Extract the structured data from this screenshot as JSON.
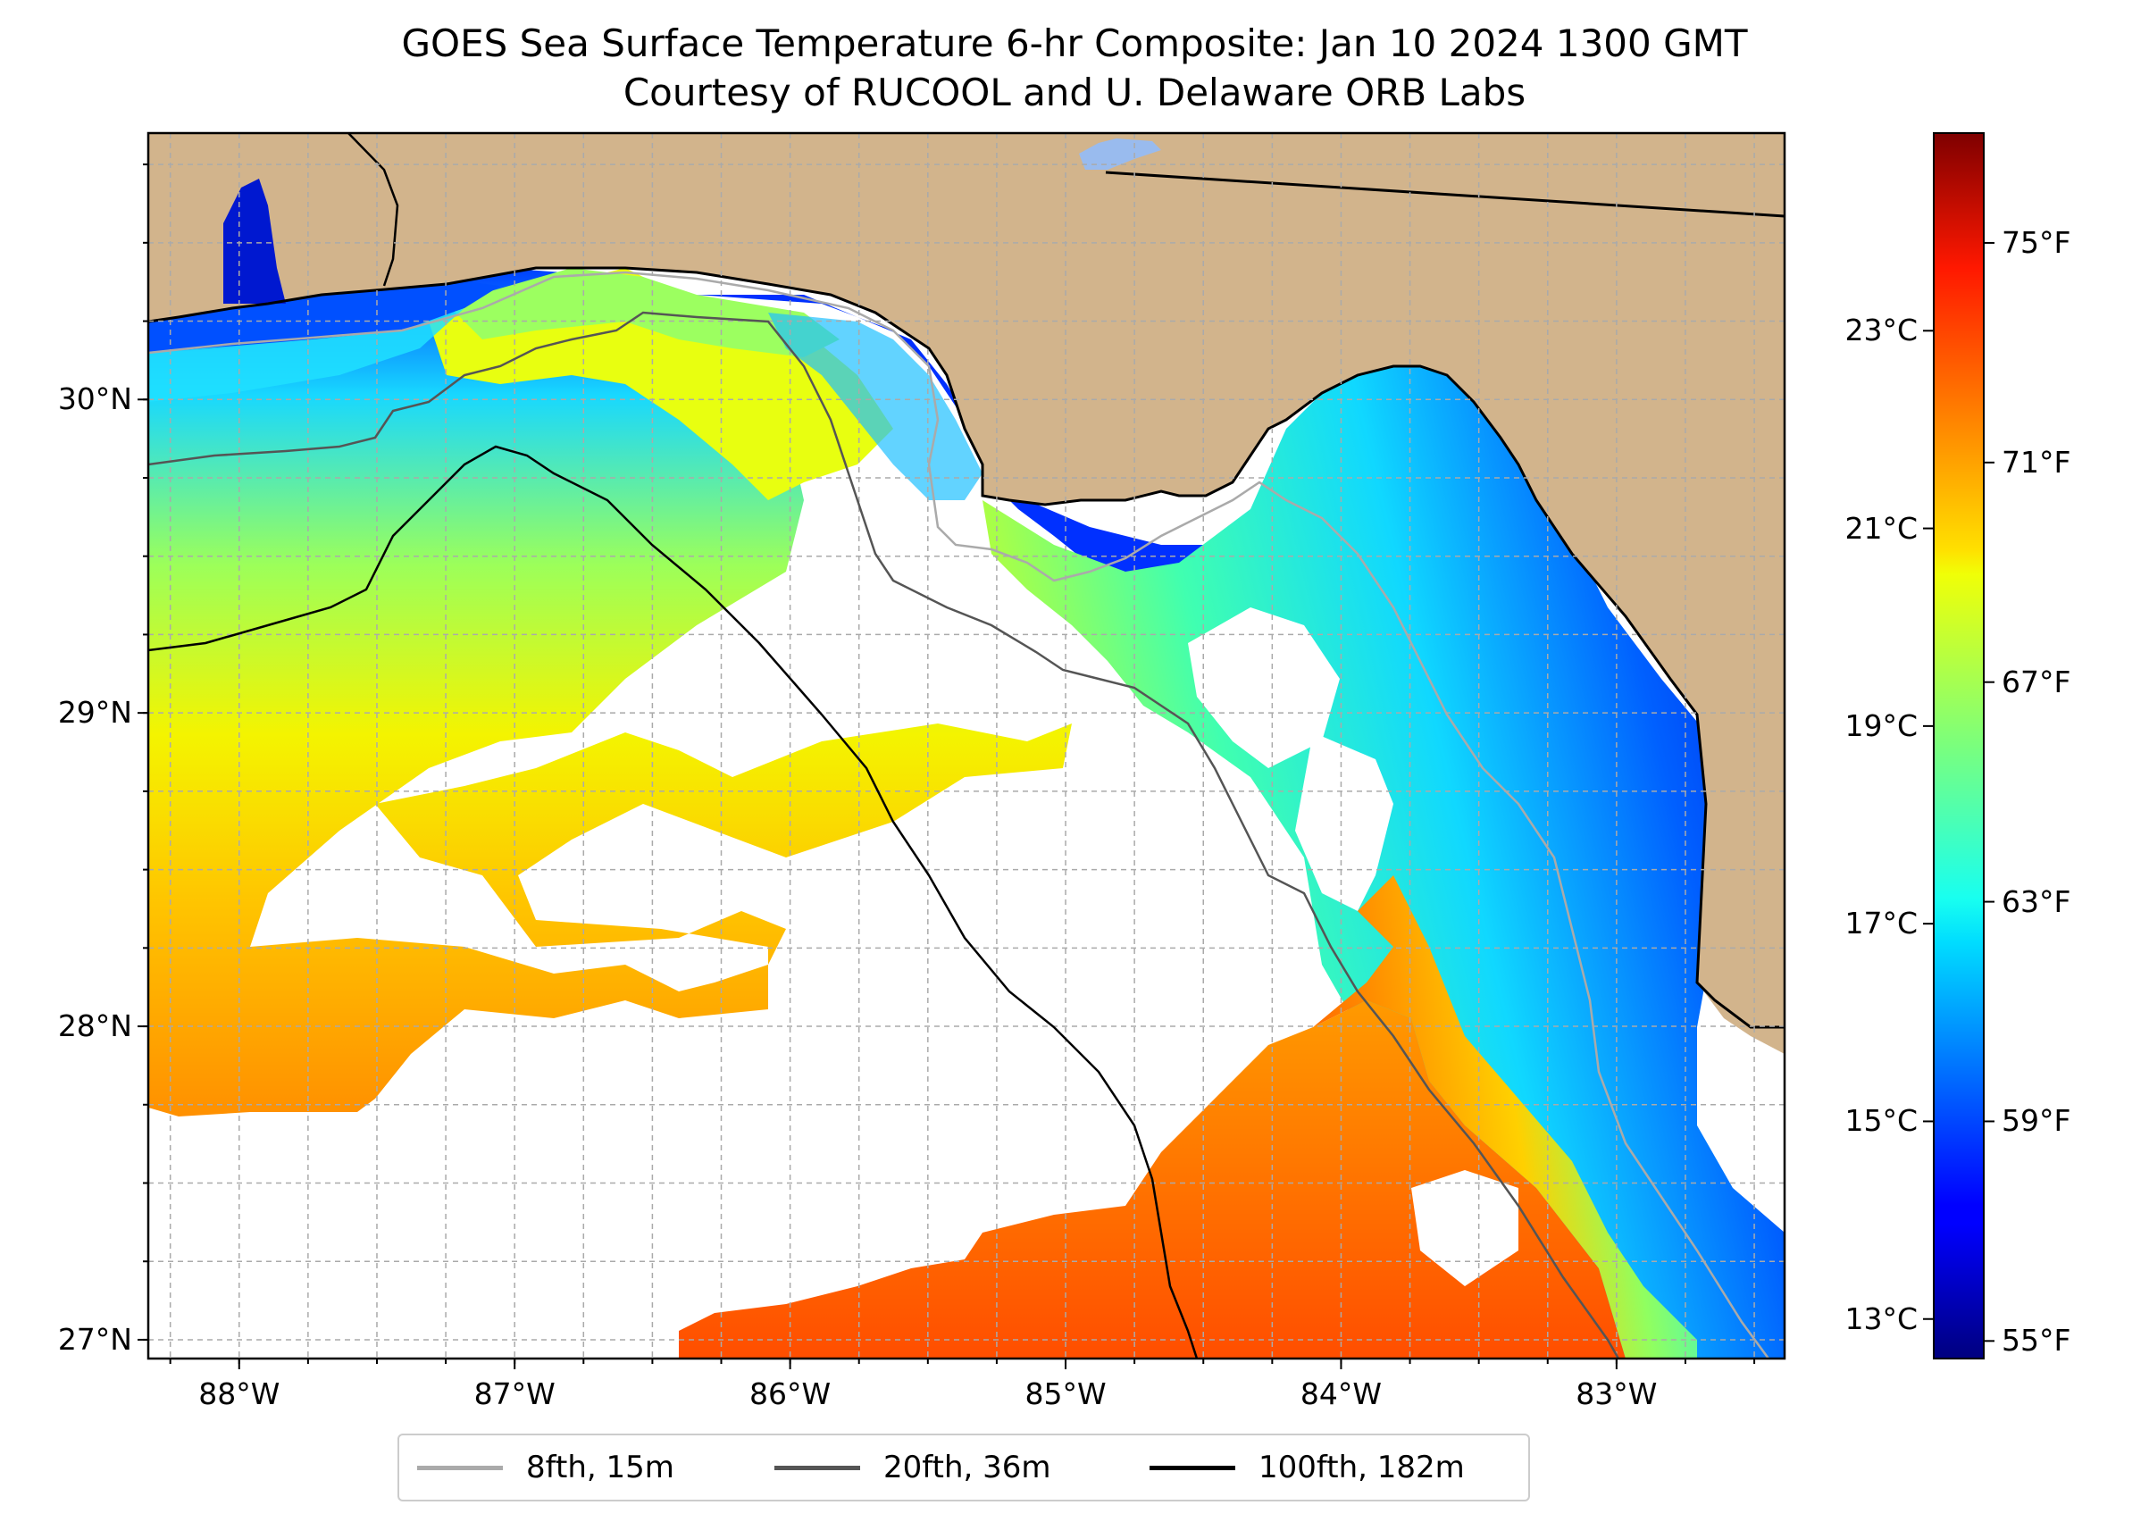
{
  "title": "GOES Sea Surface Temperature 6-hr Composite: Jan 10 2024 1300 GMT",
  "subtitle": "Courtesy of RUCOOL and U. Delaware ORB Labs",
  "map": {
    "lon_range": [
      -88.33,
      -82.39
    ],
    "lat_range": [
      26.94,
      30.85
    ],
    "longitude_ticks": [
      {
        "value": -88,
        "label": "88°W"
      },
      {
        "value": -87,
        "label": "87°W"
      },
      {
        "value": -86,
        "label": "86°W"
      },
      {
        "value": -85,
        "label": "85°W"
      },
      {
        "value": -84,
        "label": "84°W"
      },
      {
        "value": -83,
        "label": "83°W"
      }
    ],
    "latitude_ticks": [
      {
        "value": 30,
        "label": "30°N"
      },
      {
        "value": 29,
        "label": "29°N"
      },
      {
        "value": 28,
        "label": "28°N"
      },
      {
        "value": 27,
        "label": "27°N"
      }
    ],
    "gridlines": true,
    "colors": {
      "land": "#d2b48c",
      "no_data": "#ffffff",
      "grid": "#aaaaaa"
    }
  },
  "colorbar": {
    "colormap": "jet",
    "celsius_range": [
      12.6,
      25.0
    ],
    "celsius_ticks": [
      {
        "value": 13,
        "label": "13°C"
      },
      {
        "value": 15,
        "label": "15°C"
      },
      {
        "value": 17,
        "label": "17°C"
      },
      {
        "value": 19,
        "label": "19°C"
      },
      {
        "value": 21,
        "label": "21°C"
      },
      {
        "value": 23,
        "label": "23°C"
      }
    ],
    "fahrenheit_ticks": [
      {
        "value": 55,
        "label": "55°F"
      },
      {
        "value": 59,
        "label": "59°F"
      },
      {
        "value": 63,
        "label": "63°F"
      },
      {
        "value": 67,
        "label": "67°F"
      },
      {
        "value": 71,
        "label": "71°F"
      },
      {
        "value": 75,
        "label": "75°F"
      }
    ]
  },
  "legend": {
    "placement": "bottom-center",
    "items": [
      {
        "label": "8fth, 15m",
        "color": "#aaaaaa"
      },
      {
        "label": "20fth, 36m",
        "color": "#555555"
      },
      {
        "label": "100fth, 182m",
        "color": "#000000"
      }
    ]
  }
}
